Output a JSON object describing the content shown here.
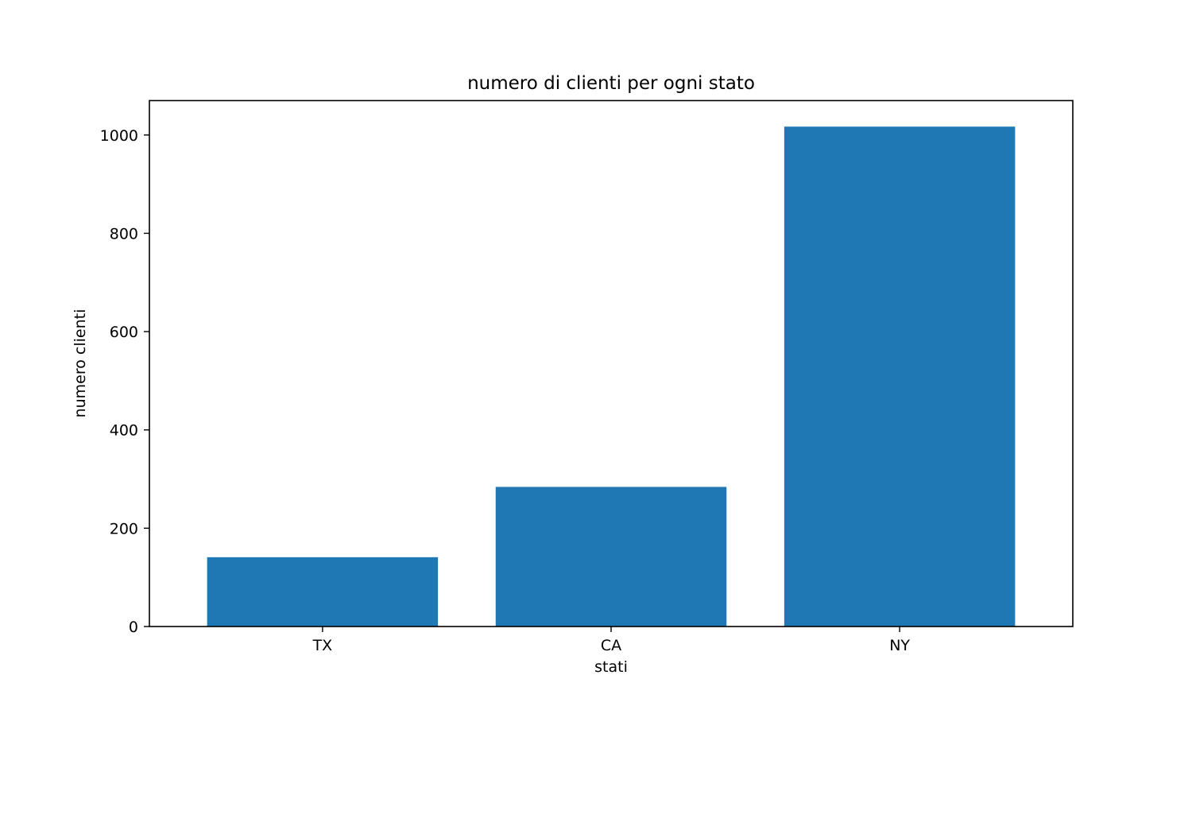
{
  "chart_data": {
    "type": "bar",
    "title": "numero di clienti per ogni stato",
    "xlabel": "stati",
    "ylabel": "numero clienti",
    "categories": [
      "TX",
      "CA",
      "NY"
    ],
    "values": [
      141,
      284,
      1017
    ],
    "ylim": [
      0,
      1070
    ],
    "yticks": [
      0,
      200,
      400,
      600,
      800,
      1000
    ],
    "bar_color": "#1f77b4",
    "grid": false,
    "legend": "none"
  }
}
